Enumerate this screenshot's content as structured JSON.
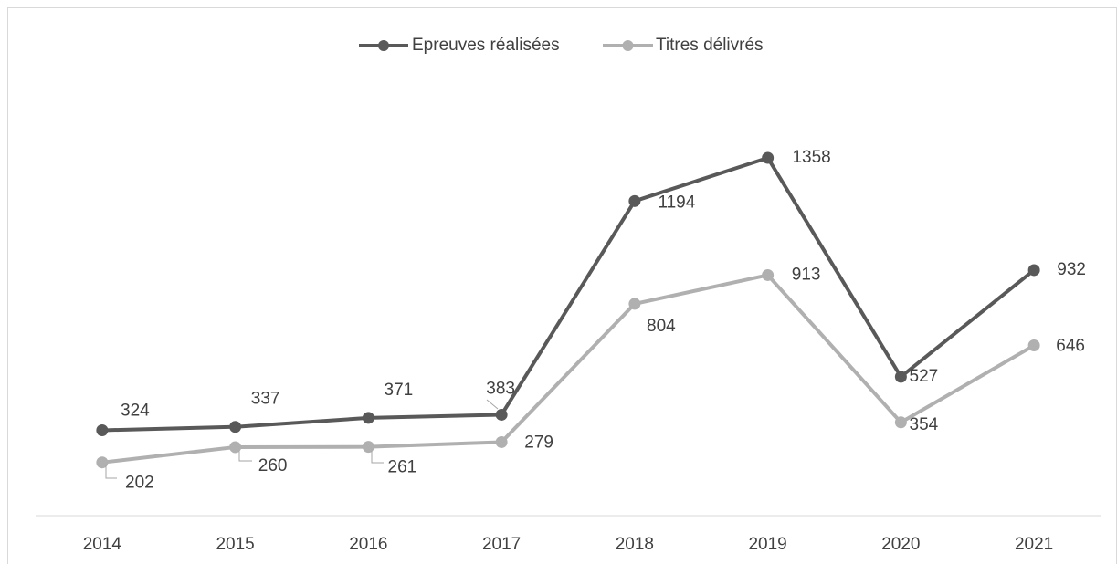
{
  "chart_data": {
    "type": "line",
    "categories": [
      "2014",
      "2015",
      "2016",
      "2017",
      "2018",
      "2019",
      "2020",
      "2021"
    ],
    "series": [
      {
        "name": "Epreuves réalisées",
        "color": "#595959",
        "values": [
          324,
          337,
          371,
          383,
          1194,
          1358,
          527,
          932
        ]
      },
      {
        "name": "Titres délivrés",
        "color": "#b0b0b0",
        "values": [
          202,
          260,
          261,
          279,
          804,
          913,
          354,
          646
        ]
      }
    ],
    "ylim": [
      0,
      1500
    ],
    "legend": "top"
  }
}
